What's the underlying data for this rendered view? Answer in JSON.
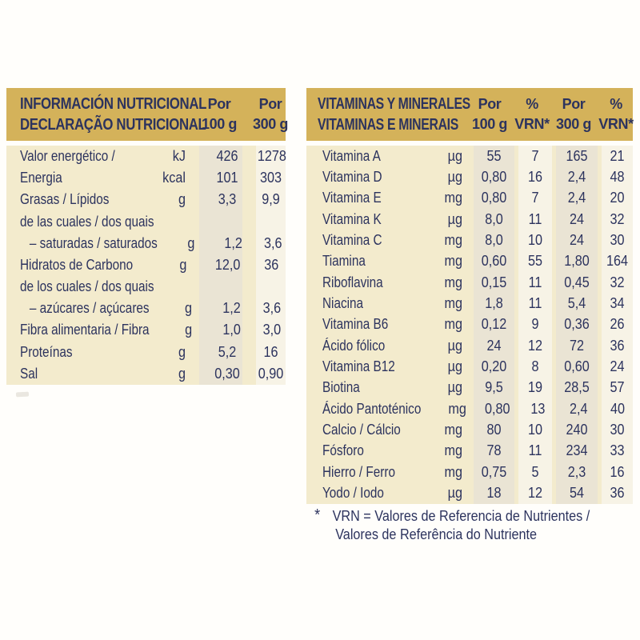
{
  "colors": {
    "band_gold": "#d4b25a",
    "body_cream": "#f3ebcd",
    "stripe_dark": "#eae4d4",
    "stripe_light": "#f7f3e6",
    "text_navy": "#2c335e"
  },
  "nutrition_table": {
    "title_line1": "INFORMACIÓN NUTRICIONAL",
    "title_line2": "DECLARAÇÃO NUTRICIONAL",
    "columns": [
      {
        "line1": "Por",
        "line2": "100 g"
      },
      {
        "line1": "Por",
        "line2": "300 g"
      }
    ],
    "rows": [
      {
        "label": "Valor energético /",
        "unit": "kJ",
        "per100": "426",
        "per300": "1278",
        "indent": false
      },
      {
        "label": "Energia",
        "unit": "kcal",
        "per100": "101",
        "per300": "303",
        "indent": false
      },
      {
        "label": "Grasas / Lípidos",
        "unit": "g",
        "per100": "3,3",
        "per300": "9,9",
        "indent": false
      },
      {
        "label": "de las cuales / dos quais",
        "unit": "",
        "per100": "",
        "per300": "",
        "indent": false
      },
      {
        "label": "– saturadas / saturados",
        "unit": "g",
        "per100": "1,2",
        "per300": "3,6",
        "indent": true
      },
      {
        "label": "Hidratos de Carbono",
        "unit": "g",
        "per100": "12,0",
        "per300": "36",
        "indent": false
      },
      {
        "label": "de los cuales / dos quais",
        "unit": "",
        "per100": "",
        "per300": "",
        "indent": false
      },
      {
        "label": "– azúcares / açúcares",
        "unit": "g",
        "per100": "1,2",
        "per300": "3,6",
        "indent": true
      },
      {
        "label": "Fibra alimentaria / Fibra",
        "unit": "g",
        "per100": "1,0",
        "per300": "3,0",
        "indent": false
      },
      {
        "label": "Proteínas",
        "unit": "g",
        "per100": "5,2",
        "per300": "16",
        "indent": false
      },
      {
        "label": "Sal",
        "unit": "g",
        "per100": "0,30",
        "per300": "0,90",
        "indent": false
      }
    ]
  },
  "vitamins_table": {
    "title_line1": "VITAMINAS Y MINERALES",
    "title_line2": "VITAMINAS E MINERAIS",
    "columns": [
      {
        "line1": "Por",
        "line2": "100 g"
      },
      {
        "line1": "%",
        "line2": "VRN*"
      },
      {
        "line1": "Por",
        "line2": "300 g"
      },
      {
        "line1": "%",
        "line2": "VRN*"
      }
    ],
    "rows": [
      {
        "label": "Vitamina A",
        "unit": "µg",
        "per100": "55",
        "vrn100": "7",
        "per300": "165",
        "vrn300": "21"
      },
      {
        "label": "Vitamina D",
        "unit": "µg",
        "per100": "0,80",
        "vrn100": "16",
        "per300": "2,4",
        "vrn300": "48"
      },
      {
        "label": "Vitamina E",
        "unit": "mg",
        "per100": "0,80",
        "vrn100": "7",
        "per300": "2,4",
        "vrn300": "20"
      },
      {
        "label": "Vitamina K",
        "unit": "µg",
        "per100": "8,0",
        "vrn100": "11",
        "per300": "24",
        "vrn300": "32"
      },
      {
        "label": "Vitamina C",
        "unit": "mg",
        "per100": "8,0",
        "vrn100": "10",
        "per300": "24",
        "vrn300": "30"
      },
      {
        "label": "Tiamina",
        "unit": "mg",
        "per100": "0,60",
        "vrn100": "55",
        "per300": "1,80",
        "vrn300": "164"
      },
      {
        "label": "Riboflavina",
        "unit": "mg",
        "per100": "0,15",
        "vrn100": "11",
        "per300": "0,45",
        "vrn300": "32"
      },
      {
        "label": "Niacina",
        "unit": "mg",
        "per100": "1,8",
        "vrn100": "11",
        "per300": "5,4",
        "vrn300": "34"
      },
      {
        "label": "Vitamina B6",
        "unit": "mg",
        "per100": "0,12",
        "vrn100": "9",
        "per300": "0,36",
        "vrn300": "26"
      },
      {
        "label": "Ácido fólico",
        "unit": "µg",
        "per100": "24",
        "vrn100": "12",
        "per300": "72",
        "vrn300": "36"
      },
      {
        "label": "Vitamina B12",
        "unit": "µg",
        "per100": "0,20",
        "vrn100": "8",
        "per300": "0,60",
        "vrn300": "24"
      },
      {
        "label": "Biotina",
        "unit": "µg",
        "per100": "9,5",
        "vrn100": "19",
        "per300": "28,5",
        "vrn300": "57"
      },
      {
        "label": "Ácido Pantoténico",
        "unit": "mg",
        "per100": "0,80",
        "vrn100": "13",
        "per300": "2,4",
        "vrn300": "40"
      },
      {
        "label": "Calcio / Cálcio",
        "unit": "mg",
        "per100": "80",
        "vrn100": "10",
        "per300": "240",
        "vrn300": "30"
      },
      {
        "label": "Fósforo",
        "unit": "mg",
        "per100": "78",
        "vrn100": "11",
        "per300": "234",
        "vrn300": "33"
      },
      {
        "label": "Hierro / Ferro",
        "unit": "mg",
        "per100": "0,75",
        "vrn100": "5",
        "per300": "2,3",
        "vrn300": "16"
      },
      {
        "label": "Yodo / Iodo",
        "unit": "µg",
        "per100": "18",
        "vrn100": "12",
        "per300": "54",
        "vrn300": "36"
      }
    ]
  },
  "footnote": {
    "marker": "*",
    "line1": "VRN = Valores de Referencia de Nutrientes /",
    "line2": "Valores de Referência do Nutriente"
  }
}
